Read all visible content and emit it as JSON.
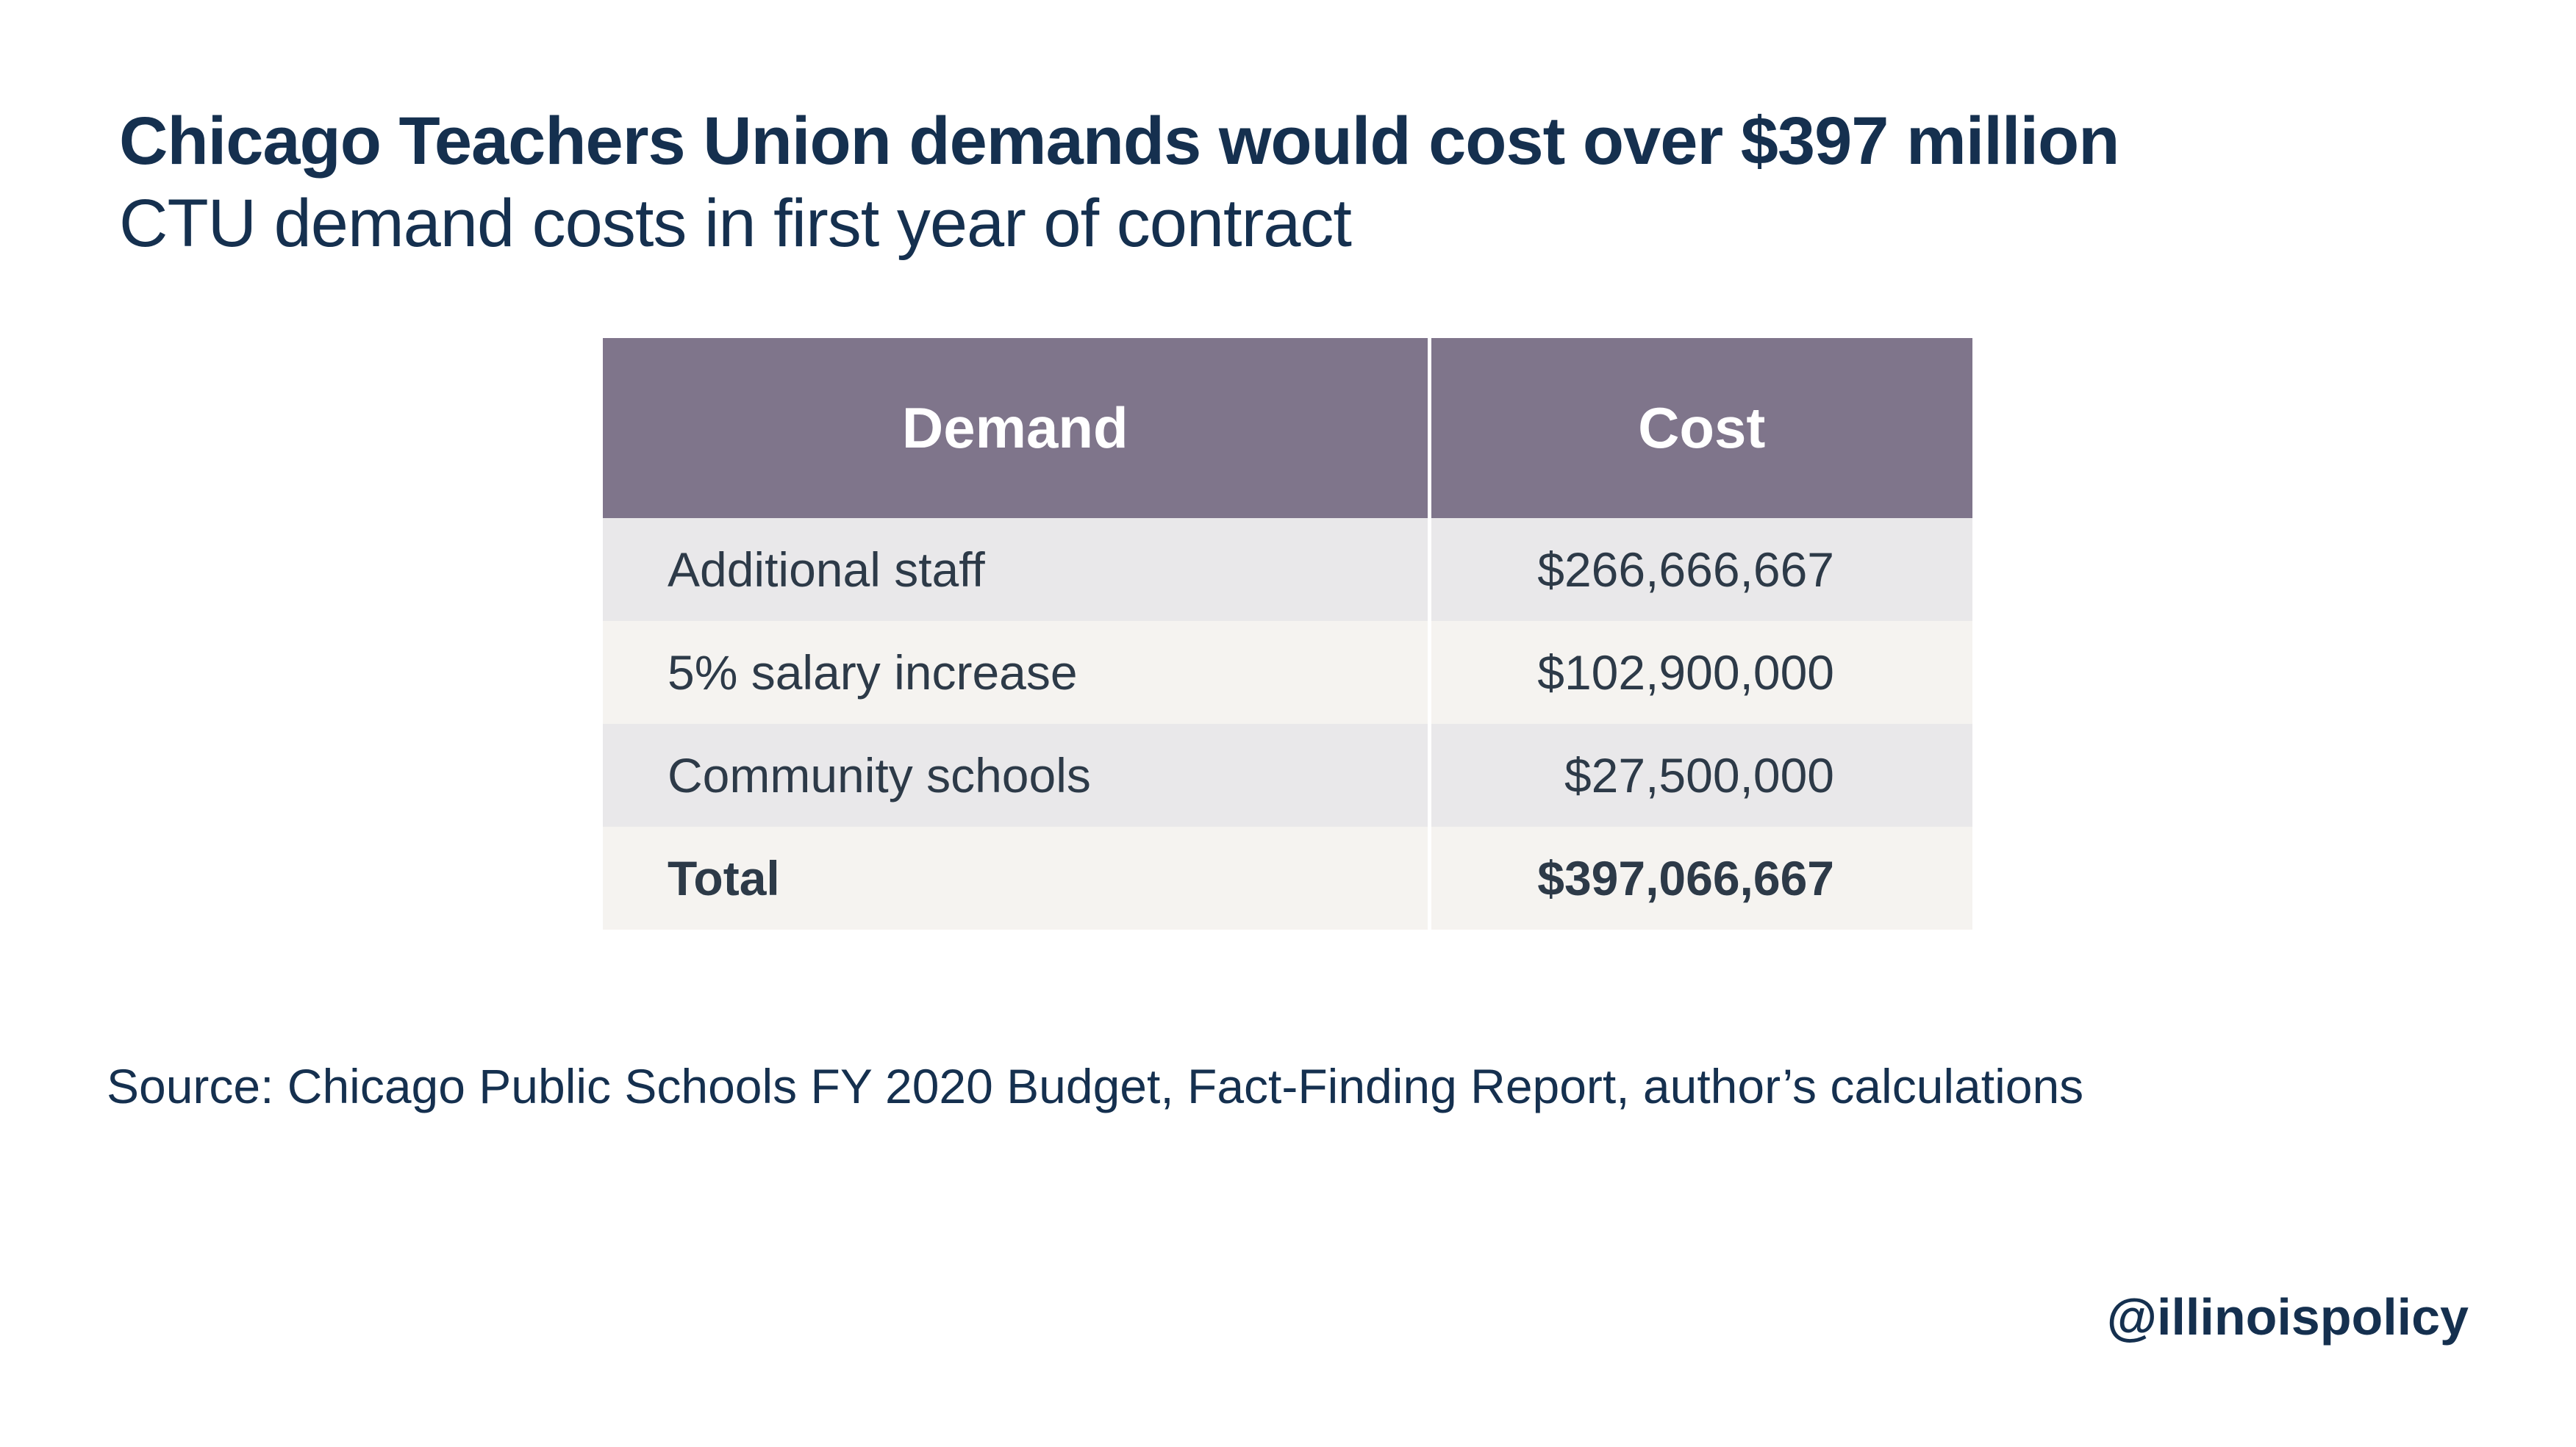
{
  "title": "Chicago Teachers Union demands would cost over $397 million",
  "subtitle": "CTU demand costs in first year of contract",
  "colors": {
    "header_bg": "#7f758b",
    "row_odd_bg": "#e9e8ea",
    "row_even_bg": "#f5f3f0",
    "title_text": "#15304f",
    "body_text": "#2d3a48"
  },
  "chart_data": {
    "type": "table",
    "columns": [
      "Demand",
      "Cost"
    ],
    "rows": [
      {
        "demand": "Additional staff",
        "cost": "$266,666,667",
        "value": 266666667
      },
      {
        "demand": "5% salary increase",
        "cost": "$102,900,000",
        "value": 102900000
      },
      {
        "demand": "Community schools",
        "cost": "$27,500,000",
        "value": 27500000
      }
    ],
    "total": {
      "demand": "Total",
      "cost": "$397,066,667",
      "value": 397066667
    }
  },
  "source": "Source: Chicago Public Schools FY 2020 Budget, Fact-Finding Report, author’s calculations",
  "handle": "@illinoispolicy"
}
